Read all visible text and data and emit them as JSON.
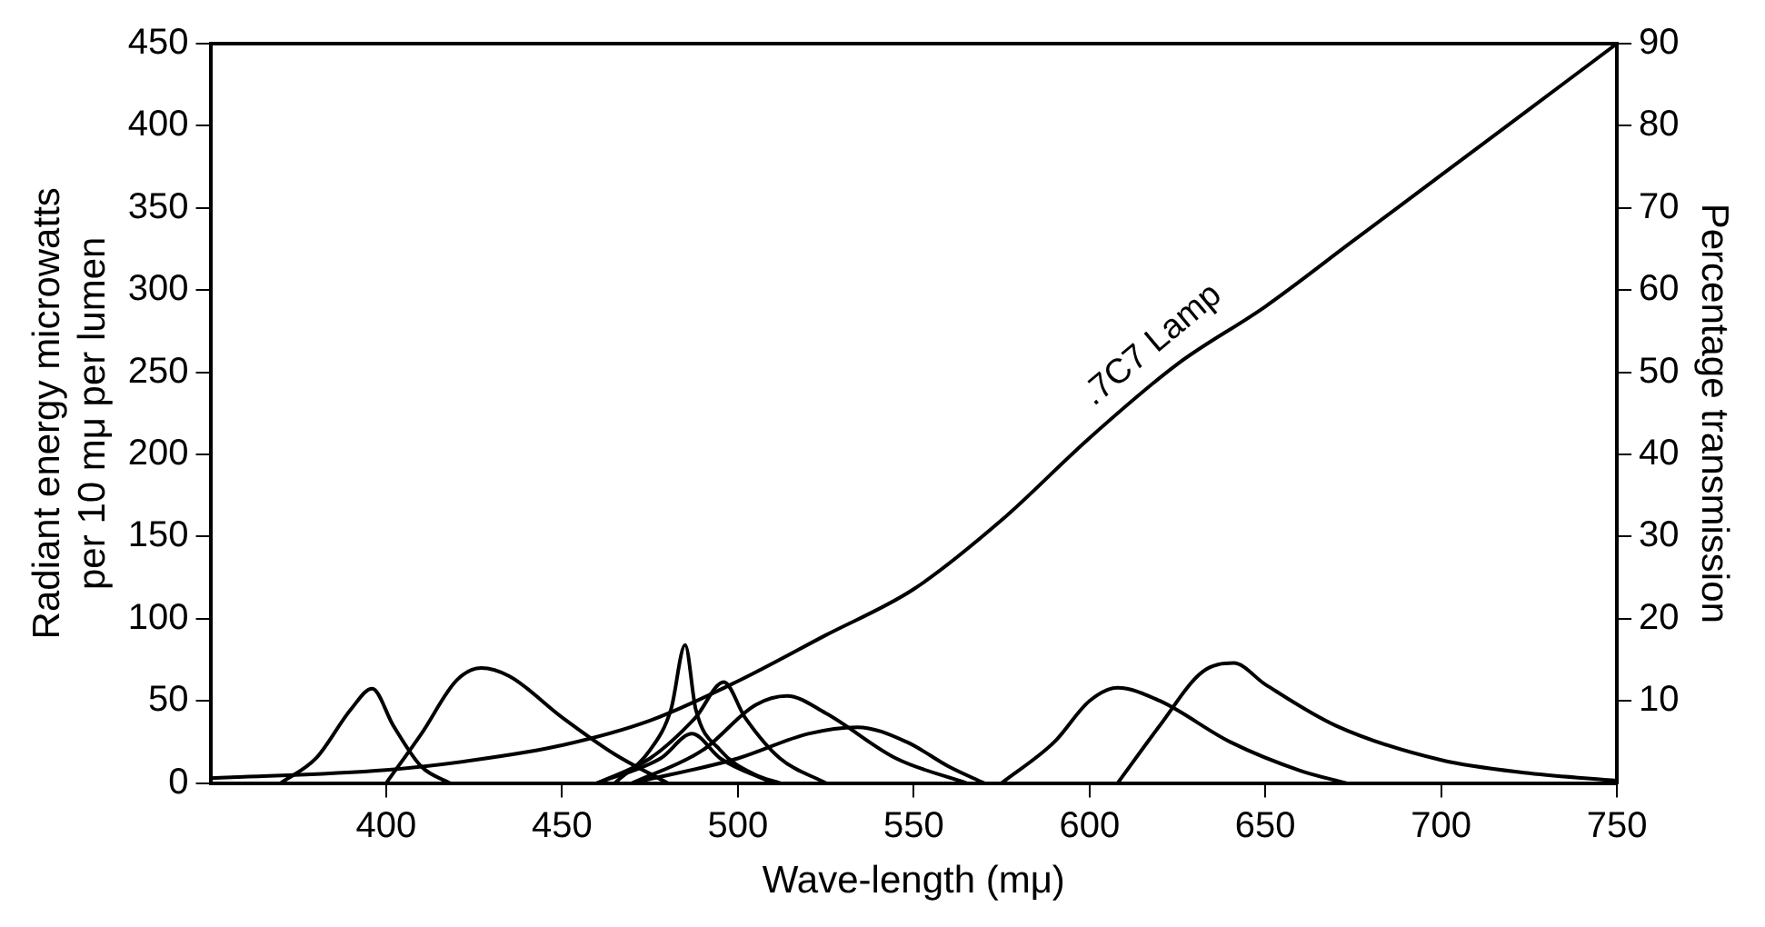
{
  "chart_data": {
    "type": "line",
    "xlabel": "Wave-length (mμ)",
    "ylabel": "Radiant energy microwatts\nper 10 mμ per lumen",
    "y2label": "Percentage transmission",
    "xlim": [
      350,
      750
    ],
    "xticks": [
      400,
      450,
      500,
      550,
      600,
      650,
      700,
      750
    ],
    "ylim": [
      0,
      450
    ],
    "yticks": [
      0,
      50,
      100,
      150,
      200,
      250,
      300,
      350,
      400,
      450
    ],
    "y2lim": [
      0,
      90
    ],
    "y2ticks": [
      10,
      20,
      30,
      40,
      50,
      60,
      70,
      80,
      90
    ],
    "grid": false,
    "legend": false,
    "marker": "none",
    "line_style": "solid",
    "annotations": [
      {
        "text": ".7C7 Lamp",
        "x": 604,
        "y": 222
      }
    ],
    "series": [
      {
        "color": "#000000",
        "x": [
          350,
          400,
          425,
          450,
          475,
          500,
          525,
          550,
          575,
          600,
          625,
          650,
          675,
          700,
          725,
          750
        ],
        "values": [
          3,
          8,
          14,
          23,
          38,
          62,
          90,
          118,
          160,
          210,
          255,
          290,
          330,
          370,
          410,
          450
        ]
      },
      {
        "color": "#000000",
        "axis": "y2",
        "x": [
          370,
          380,
          390,
          396,
          402,
          410,
          418
        ],
        "values": [
          0,
          3,
          9,
          11.5,
          7,
          2,
          0
        ]
      },
      {
        "color": "#000000",
        "axis": "y2",
        "x": [
          400,
          410,
          420,
          427,
          435,
          450,
          465,
          480
        ],
        "values": [
          0,
          6,
          12.5,
          14,
          13,
          8,
          3.5,
          0
        ]
      },
      {
        "color": "#000000",
        "axis": "y2",
        "x": [
          465,
          475,
          481,
          485,
          488,
          495,
          505,
          512
        ],
        "values": [
          0,
          4,
          9,
          16.8,
          9,
          4,
          1,
          0
        ]
      },
      {
        "color": "#000000",
        "axis": "y2",
        "x": [
          460,
          475,
          488,
          496,
          502,
          512,
          525
        ],
        "values": [
          0,
          3,
          8,
          12.3,
          8,
          3,
          0
        ]
      },
      {
        "color": "#000000",
        "axis": "y2",
        "x": [
          460,
          478,
          487,
          495,
          510
        ],
        "values": [
          0,
          3,
          6,
          3,
          0
        ]
      },
      {
        "color": "#000000",
        "axis": "y2",
        "x": [
          470,
          490,
          505,
          514,
          525,
          545,
          565
        ],
        "values": [
          0,
          4,
          9.5,
          10.6,
          8.5,
          3,
          0
        ]
      },
      {
        "color": "#000000",
        "axis": "y2",
        "x": [
          470,
          500,
          520,
          534,
          548,
          560,
          570
        ],
        "values": [
          0,
          3,
          6,
          6.8,
          5,
          2,
          0
        ]
      },
      {
        "color": "#000000",
        "axis": "y2",
        "x": [
          575,
          590,
          600,
          608,
          620,
          640,
          660,
          673
        ],
        "values": [
          0,
          5,
          10,
          11.6,
          10,
          5,
          1.5,
          0
        ]
      },
      {
        "color": "#000000",
        "axis": "y2",
        "x": [
          608,
          620,
          632,
          641,
          650,
          670,
          700,
          725,
          750
        ],
        "values": [
          0,
          7,
          13.5,
          14.6,
          12,
          7,
          2.8,
          1.2,
          0.3
        ]
      }
    ]
  }
}
